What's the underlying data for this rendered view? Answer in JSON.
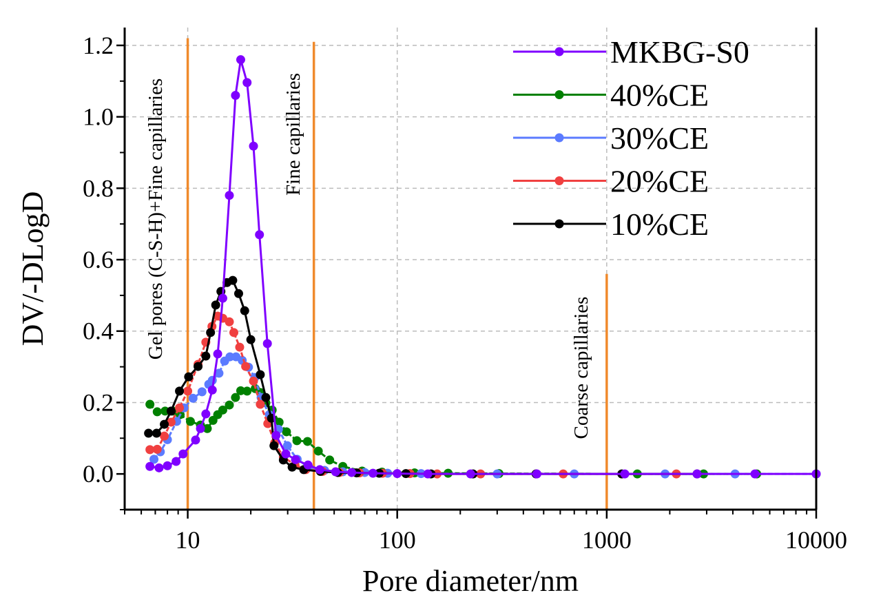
{
  "chart_data": {
    "type": "line",
    "title": "",
    "xlabel": "Pore diameter/nm",
    "ylabel": "DV/-DLogD",
    "xscale": "log",
    "xlim": [
      5,
      10000
    ],
    "ylim": [
      -0.1,
      1.25
    ],
    "xticks": [
      10,
      100,
      1000,
      10000
    ],
    "xtick_labels": [
      "10",
      "100",
      "1000",
      "10000"
    ],
    "yticks": [
      0.0,
      0.2,
      0.4,
      0.6,
      0.8,
      1.0,
      1.2
    ],
    "ytick_labels": [
      "0.0",
      "0.2",
      "0.4",
      "0.6",
      "0.8",
      "1.0",
      "1.2"
    ],
    "grid": true,
    "legend_position": "top-right",
    "annotations": [
      {
        "text": "Gel pores (C-S-H)+Fine capillaries",
        "x": 10,
        "line_top": 1.22
      },
      {
        "text": "Fine capillaries",
        "x": 40,
        "line_top": 1.21
      },
      {
        "text": "Coarse capillaries",
        "x": 1000,
        "line_top": 0.56
      }
    ],
    "annotation_color": "#F08A2C",
    "series": [
      {
        "name": "MKBG-S0",
        "color": "#7F00FF",
        "x": [
          6.6,
          7.3,
          8.0,
          8.8,
          9.5,
          10.9,
          11.5,
          12.2,
          13.1,
          13.9,
          14.7,
          15.8,
          16.9,
          17.9,
          19.2,
          20.6,
          22.0,
          24.0,
          26.4,
          29.4,
          32.7,
          37.5,
          42.7,
          50.8,
          60.6,
          76.6,
          100,
          140,
          224,
          464,
          1220,
          2700,
          5100,
          10000
        ],
        "y": [
          0.021,
          0.017,
          0.023,
          0.035,
          0.056,
          0.095,
          0.127,
          0.168,
          0.235,
          0.336,
          0.492,
          0.78,
          1.06,
          1.16,
          1.096,
          0.918,
          0.67,
          0.365,
          0.108,
          0.056,
          0.04,
          0.025,
          0.012,
          0.006,
          0.004,
          0.002,
          0.001,
          0.0,
          0.0,
          0.0,
          0.0,
          0.0,
          0.0,
          0.0
        ]
      },
      {
        "name": "40%CE",
        "color": "#008000",
        "x": [
          6.6,
          7.15,
          7.8,
          8.5,
          9.2,
          10.3,
          11.5,
          12.4,
          13.2,
          13.9,
          14.7,
          15.8,
          16.9,
          17.9,
          19.2,
          21.0,
          22.2,
          23.6,
          25.3,
          27.3,
          29.6,
          33.2,
          37.3,
          42.0,
          47.6,
          55.0,
          68.0,
          84.6,
          121,
          175,
          306,
          1400,
          2900,
          5200
        ],
        "y": [
          0.195,
          0.174,
          0.176,
          0.176,
          0.166,
          0.147,
          0.137,
          0.127,
          0.15,
          0.166,
          0.179,
          0.193,
          0.214,
          0.233,
          0.232,
          0.239,
          0.228,
          0.199,
          0.179,
          0.145,
          0.118,
          0.093,
          0.091,
          0.064,
          0.039,
          0.021,
          0.008,
          0.005,
          0.003,
          0.002,
          0.001,
          0.0,
          0.0,
          0.0
        ]
      },
      {
        "name": "30%CE",
        "color": "#5B7BFF",
        "x": [
          6.9,
          7.4,
          8.0,
          8.85,
          9.6,
          10.6,
          11.7,
          12.6,
          13.1,
          14.1,
          15.0,
          15.9,
          17.0,
          18.2,
          19.5,
          20.9,
          22.4,
          24.5,
          27.1,
          29.9,
          33.3,
          37.8,
          45,
          55,
          70,
          90,
          130,
          300,
          700,
          1900,
          4100,
          10000
        ],
        "y": [
          0.041,
          0.062,
          0.096,
          0.147,
          0.185,
          0.212,
          0.23,
          0.251,
          0.262,
          0.282,
          0.316,
          0.328,
          0.328,
          0.318,
          0.299,
          0.27,
          0.214,
          0.166,
          0.125,
          0.079,
          0.041,
          0.019,
          0.01,
          0.006,
          0.004,
          0.002,
          0.001,
          0.0,
          0.0,
          0.0,
          0.0,
          0.0
        ]
      },
      {
        "name": "20%CE",
        "color": "#F04040",
        "x": [
          6.6,
          7.15,
          7.73,
          8.33,
          9.13,
          10.0,
          11.2,
          12.2,
          13.05,
          13.9,
          14.7,
          15.8,
          16.6,
          17.7,
          18.9,
          20.6,
          22.2,
          24.1,
          26.0,
          28.6,
          32.5,
          36.6,
          44,
          53,
          66,
          85,
          115,
          155,
          250,
          620,
          2150
        ],
        "y": [
          0.068,
          0.069,
          0.106,
          0.145,
          0.185,
          0.232,
          0.307,
          0.369,
          0.413,
          0.442,
          0.436,
          0.426,
          0.396,
          0.355,
          0.301,
          0.26,
          0.195,
          0.141,
          0.087,
          0.048,
          0.025,
          0.012,
          0.007,
          0.004,
          0.003,
          0.002,
          0.001,
          0.0,
          0.0,
          0.0,
          0.0
        ]
      },
      {
        "name": "10%CE",
        "color": "#000000",
        "x": [
          6.5,
          7.1,
          7.73,
          8.33,
          9.13,
          10.1,
          11.2,
          12.2,
          12.85,
          13.6,
          14.4,
          15.4,
          16.4,
          17.5,
          18.7,
          20.0,
          22.2,
          23.6,
          25.1,
          25.8,
          28.6,
          31.5,
          35.8,
          43,
          52,
          64,
          82,
          110,
          145,
          230,
          460,
          1180,
          2700
        ],
        "y": [
          0.114,
          0.114,
          0.139,
          0.176,
          0.232,
          0.272,
          0.301,
          0.33,
          0.396,
          0.473,
          0.511,
          0.536,
          0.542,
          0.505,
          0.457,
          0.376,
          0.278,
          0.214,
          0.156,
          0.079,
          0.039,
          0.019,
          0.012,
          0.007,
          0.004,
          0.003,
          0.002,
          0.001,
          0.0,
          0.0,
          0.0,
          0.0,
          0.0
        ]
      }
    ]
  }
}
